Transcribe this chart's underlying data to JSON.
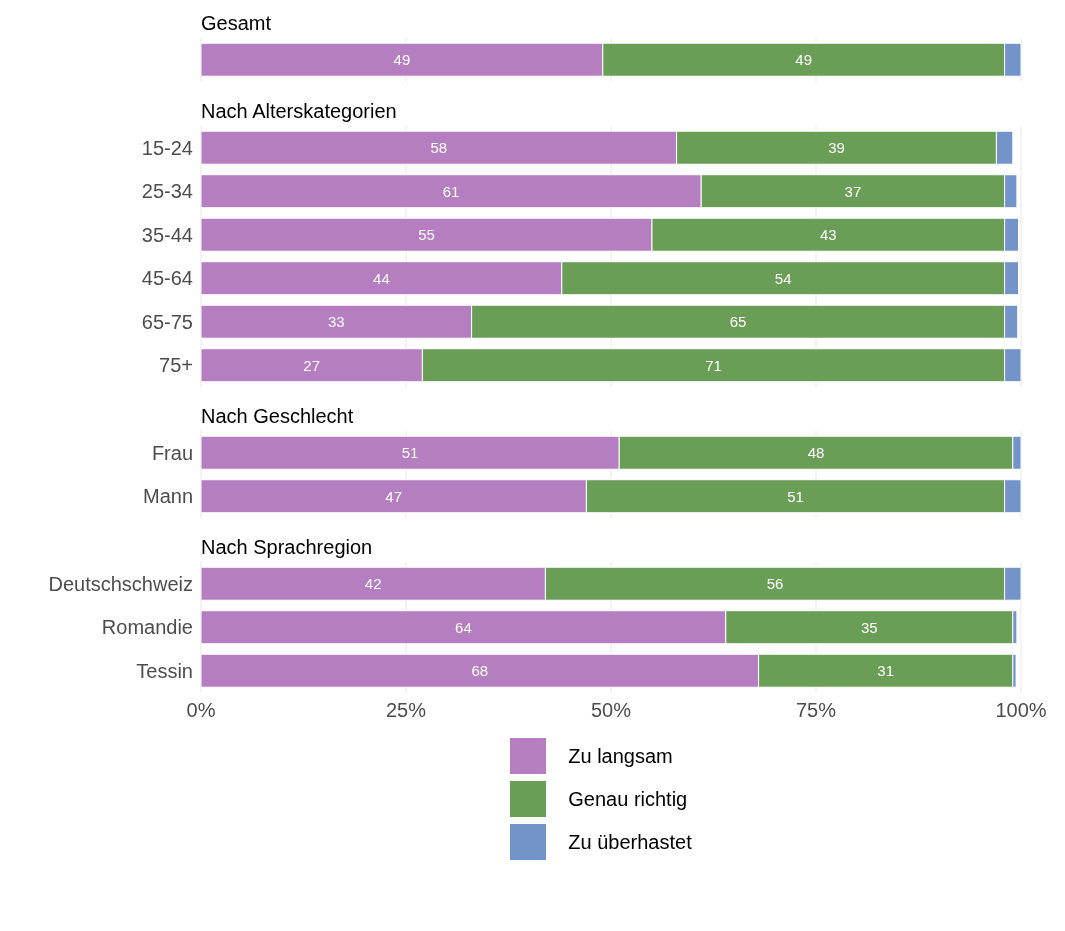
{
  "chart_data": [
    {
      "type": "bar",
      "orientation": "horizontal",
      "stacked": true,
      "title": "Gesamt",
      "categories": [
        null
      ],
      "xlim": [
        0,
        100
      ],
      "xticks": [
        {
          "value": 0,
          "label": null
        },
        {
          "value": 25,
          "label": null
        },
        {
          "value": 50,
          "label": null
        },
        {
          "value": 75,
          "label": null
        },
        {
          "value": 100,
          "label": null
        }
      ],
      "grid": "x",
      "tick_labels": false,
      "series": [
        {
          "color": "#b57ec0",
          "values": [
            49
          ],
          "value_labels": [
            "49"
          ]
        },
        {
          "color": "#6a9e56",
          "values": [
            49
          ],
          "value_labels": [
            "49"
          ]
        },
        {
          "color": "#7394c9",
          "values": [
            2
          ],
          "value_labels": [
            null
          ]
        }
      ]
    },
    {
      "type": "bar",
      "orientation": "horizontal",
      "stacked": true,
      "title": "Nach Alterskategorien",
      "categories": [
        "15-24",
        "25-34",
        "35-44",
        "45-64",
        "65-75",
        "75+"
      ],
      "xlim": [
        0,
        100
      ],
      "xticks": [
        {
          "value": 0,
          "label": null
        },
        {
          "value": 25,
          "label": null
        },
        {
          "value": 50,
          "label": null
        },
        {
          "value": 75,
          "label": null
        },
        {
          "value": 100,
          "label": null
        }
      ],
      "grid": "x",
      "tick_labels": "y",
      "series": [
        {
          "color": "#b57ec0",
          "values": [
            58,
            61,
            55,
            44,
            33,
            27
          ],
          "value_labels": [
            "58",
            "61",
            "55",
            "44",
            "33",
            "27"
          ]
        },
        {
          "color": "#6a9e56",
          "values": [
            39,
            37,
            43,
            54,
            65,
            71
          ],
          "value_labels": [
            "39",
            "37",
            "43",
            "54",
            "65",
            "71"
          ]
        },
        {
          "color": "#7394c9",
          "values": [
            2,
            1.5,
            1.7,
            1.7,
            1.6,
            2.3
          ],
          "value_labels": [
            null,
            null,
            null,
            null,
            null,
            null
          ]
        }
      ]
    },
    {
      "type": "bar",
      "orientation": "horizontal",
      "stacked": true,
      "title": "Nach Geschlecht",
      "categories": [
        "Frau",
        "Mann"
      ],
      "xlim": [
        0,
        100
      ],
      "xticks": [
        {
          "value": 0,
          "label": null
        },
        {
          "value": 25,
          "label": null
        },
        {
          "value": 50,
          "label": null
        },
        {
          "value": 75,
          "label": null
        },
        {
          "value": 100,
          "label": null
        }
      ],
      "grid": "x",
      "tick_labels": "y",
      "series": [
        {
          "color": "#b57ec0",
          "values": [
            51,
            47
          ],
          "value_labels": [
            "51",
            "47"
          ]
        },
        {
          "color": "#6a9e56",
          "values": [
            48,
            51
          ],
          "value_labels": [
            "48",
            "51"
          ]
        },
        {
          "color": "#7394c9",
          "values": [
            1,
            2.3
          ],
          "value_labels": [
            null,
            null
          ]
        }
      ]
    },
    {
      "type": "bar",
      "orientation": "horizontal",
      "stacked": true,
      "title": "Nach Sprachregion",
      "categories": [
        "Deutschschweiz",
        "Romandie",
        "Tessin"
      ],
      "xlim": [
        0,
        100
      ],
      "xticks": [
        {
          "value": 0,
          "label": "0%"
        },
        {
          "value": 25,
          "label": "25%"
        },
        {
          "value": 50,
          "label": "50%"
        },
        {
          "value": 75,
          "label": "75%"
        },
        {
          "value": 100,
          "label": "100%"
        }
      ],
      "grid": "x",
      "legend": "bottom",
      "series": [
        {
          "name": "Zu langsam",
          "color": "#b57ec0",
          "values": [
            42,
            64,
            68
          ],
          "value_labels": [
            "42",
            "64",
            "68"
          ]
        },
        {
          "name": "Genau richtig",
          "color": "#6a9e56",
          "values": [
            56,
            35,
            31
          ],
          "value_labels": [
            "56",
            "35",
            "31"
          ]
        },
        {
          "name": "Zu überhastet",
          "color": "#7394c9",
          "values": [
            2,
            0.5,
            0.4
          ],
          "value_labels": [
            null,
            null,
            null
          ]
        }
      ]
    }
  ]
}
